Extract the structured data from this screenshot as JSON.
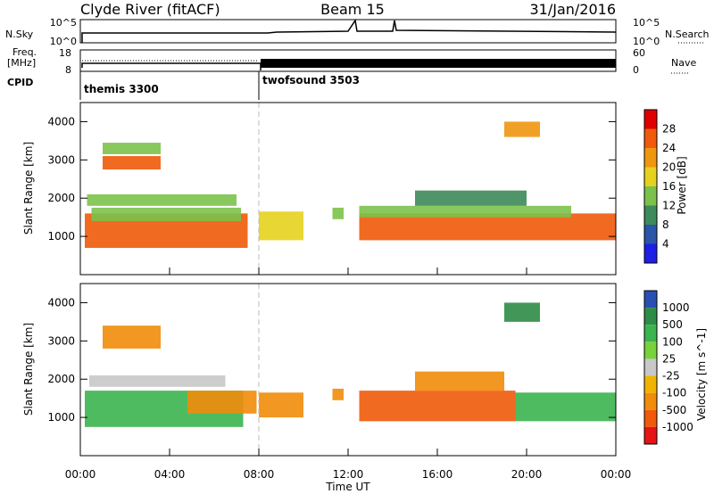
{
  "header": {
    "station": "Clyde River (fitACF)",
    "beam": "Beam 15",
    "date": "31/Jan/2016"
  },
  "top_panels": {
    "nsky_label": "N.Sky",
    "nsky_ticks": [
      "10^5",
      "10^0"
    ],
    "nsearch_label": "N.Search",
    "nsearch_ticks": [
      "10^5",
      "10^0"
    ],
    "freq_label_1": "Freq.",
    "freq_label_2": "[MHz]",
    "freq_ticks": [
      "18",
      "8"
    ],
    "nave_label": "Nave",
    "nave_ticks": [
      "60",
      "0"
    ],
    "cpid_label": "CPID",
    "cpid_segments": [
      {
        "name": "themis 3300",
        "start_hour": 0,
        "end_hour": 8
      },
      {
        "name": "twofsound 3503",
        "start_hour": 8,
        "end_hour": 24
      }
    ]
  },
  "x_axis": {
    "label": "Time UT",
    "tick_labels": [
      "00:00",
      "04:00",
      "08:00",
      "12:00",
      "16:00",
      "20:00",
      "00:00"
    ],
    "range_hours": [
      0,
      24
    ]
  },
  "chart_data": [
    {
      "type": "heatmap",
      "parameter": "power",
      "ylabel": "Slant Range [km]",
      "ylim": [
        0,
        4500
      ],
      "yticks": [
        "1000",
        "2000",
        "3000",
        "4000"
      ],
      "colorbar_label": "Power [dB]",
      "colorbar_ticks": [
        "4",
        "8",
        "12",
        "16",
        "20",
        "24",
        "28"
      ],
      "colorbar_colors": [
        "#1e1ee6",
        "#2a55a8",
        "#3d8a5a",
        "#7cc24a",
        "#e6d21e",
        "#f0960f",
        "#f05a0a",
        "#e00000"
      ],
      "regions": [
        {
          "t0": 0.2,
          "t1": 7.5,
          "r0": 700,
          "r1": 1600,
          "level": 26
        },
        {
          "t0": 0.5,
          "t1": 7.2,
          "r0": 1400,
          "r1": 1750,
          "level": 14
        },
        {
          "t0": 0.3,
          "t1": 7.0,
          "r0": 1800,
          "r1": 2100,
          "level": 12
        },
        {
          "t0": 1.0,
          "t1": 3.6,
          "r0": 2750,
          "r1": 3100,
          "level": 24
        },
        {
          "t0": 1.0,
          "t1": 3.6,
          "r0": 3150,
          "r1": 3450,
          "level": 12
        },
        {
          "t0": 8.0,
          "t1": 10.0,
          "r0": 900,
          "r1": 1650,
          "level": 18
        },
        {
          "t0": 11.3,
          "t1": 11.8,
          "r0": 1450,
          "r1": 1750,
          "level": 14
        },
        {
          "t0": 12.5,
          "t1": 24.0,
          "r0": 900,
          "r1": 1600,
          "level": 26
        },
        {
          "t0": 12.5,
          "t1": 22.0,
          "r0": 1500,
          "r1": 1800,
          "level": 14
        },
        {
          "t0": 15.0,
          "t1": 20.0,
          "r0": 1800,
          "r1": 2200,
          "level": 10
        },
        {
          "t0": 19.0,
          "t1": 20.6,
          "r0": 3600,
          "r1": 4000,
          "level": 22
        }
      ]
    },
    {
      "type": "heatmap",
      "parameter": "velocity",
      "ylabel": "Slant Range [km]",
      "ylim": [
        0,
        4500
      ],
      "yticks": [
        "1000",
        "2000",
        "3000",
        "4000"
      ],
      "colorbar_label": "Velocity [m s^-1]",
      "colorbar_ticks": [
        "1000",
        "500",
        "100",
        "25",
        "-25",
        "-100",
        "-500",
        "-1000"
      ],
      "colorbar_colors": [
        "#2850b4",
        "#2d8c46",
        "#3cb450",
        "#78d23c",
        "#c8c8c8",
        "#f0b400",
        "#f08c0a",
        "#f05a0a",
        "#e61414"
      ],
      "regions": [
        {
          "t0": 0.2,
          "t1": 7.3,
          "r0": 750,
          "r1": 1700,
          "level": 300
        },
        {
          "t0": 4.8,
          "t1": 7.9,
          "r0": 1100,
          "r1": 1700,
          "level": -300
        },
        {
          "t0": 0.4,
          "t1": 6.5,
          "r0": 1800,
          "r1": 2100,
          "level": 0
        },
        {
          "t0": 1.0,
          "t1": 3.6,
          "r0": 2800,
          "r1": 3400,
          "level": -200
        },
        {
          "t0": 8.0,
          "t1": 10.0,
          "r0": 1000,
          "r1": 1650,
          "level": -400
        },
        {
          "t0": 11.3,
          "t1": 11.8,
          "r0": 1450,
          "r1": 1750,
          "level": -300
        },
        {
          "t0": 12.5,
          "t1": 19.5,
          "r0": 900,
          "r1": 1700,
          "level": -600
        },
        {
          "t0": 15.0,
          "t1": 19.0,
          "r0": 1700,
          "r1": 2200,
          "level": -200
        },
        {
          "t0": 19.5,
          "t1": 24.0,
          "r0": 900,
          "r1": 1650,
          "level": 300
        },
        {
          "t0": 19.0,
          "t1": 20.6,
          "r0": 3500,
          "r1": 4000,
          "level": 800
        }
      ]
    }
  ]
}
